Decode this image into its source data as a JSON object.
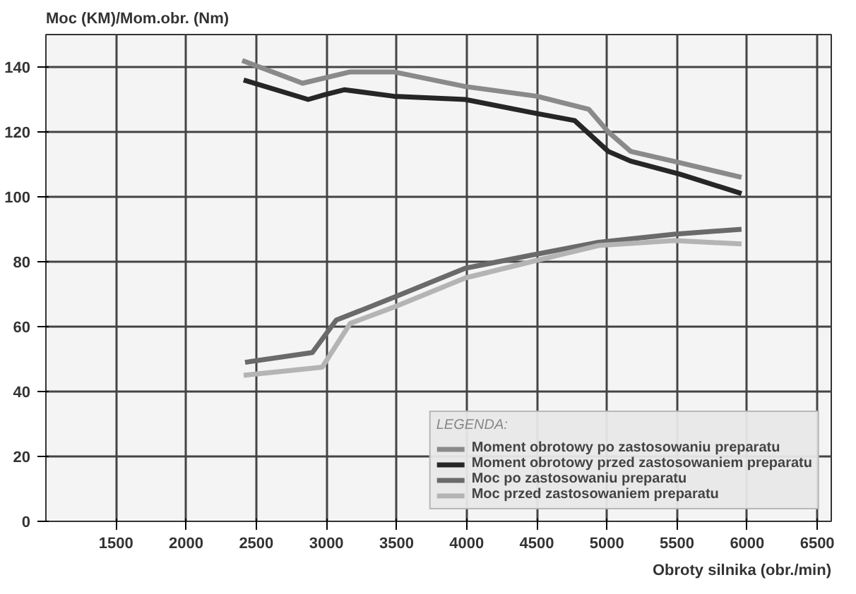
{
  "chart_data": {
    "type": "line",
    "ylabel": "Moc (KM)/Mom.obr. (Nm)",
    "xlabel": "Obroty silnika (obr./min)",
    "legend_title": "LEGENDA:",
    "xlim": [
      1000,
      6600
    ],
    "ylim": [
      0,
      150
    ],
    "xticks": [
      1500,
      2000,
      2500,
      3000,
      3500,
      4000,
      4500,
      5000,
      5500,
      6000,
      6500
    ],
    "yticks": [
      0,
      20,
      40,
      60,
      80,
      100,
      120,
      140
    ],
    "grid": true,
    "legend": "bottom right",
    "line_style": "solid",
    "series": [
      {
        "name": "Moment obrotowy po zastosowaniu preparatu",
        "color": "#8a8a8a",
        "x": [
          2400,
          2830,
          3170,
          3480,
          3990,
          4500,
          4870,
          5010,
          5170,
          5520,
          5960
        ],
        "values": [
          142,
          135,
          138.5,
          138.5,
          134,
          131,
          127,
          120,
          114,
          110.5,
          106
        ]
      },
      {
        "name": "Moment obrotowy przed zastosowaniem preparatu",
        "color": "#262626",
        "x": [
          2410,
          2870,
          2990,
          3130,
          3480,
          3990,
          4460,
          4770,
          5010,
          5170,
          5520,
          5960
        ],
        "values": [
          136,
          130,
          131.5,
          133,
          131,
          130,
          126,
          123.5,
          114,
          111,
          107,
          101
        ]
      },
      {
        "name": "Moc po zastosowaniu preparatu",
        "color": "#6a6a6a",
        "x": [
          2420,
          2900,
          3070,
          3480,
          3990,
          4460,
          4940,
          5480,
          5960
        ],
        "values": [
          49,
          52,
          62,
          69,
          78,
          82,
          86,
          88.5,
          90
        ]
      },
      {
        "name": "Moc przed zastosowaniem preparatu",
        "color": "#b4b4b4",
        "x": [
          2410,
          2970,
          3170,
          3480,
          3990,
          4460,
          4940,
          5480,
          5960
        ],
        "values": [
          45,
          47.5,
          61,
          66,
          75,
          80,
          85,
          86.5,
          85.5
        ]
      }
    ]
  }
}
